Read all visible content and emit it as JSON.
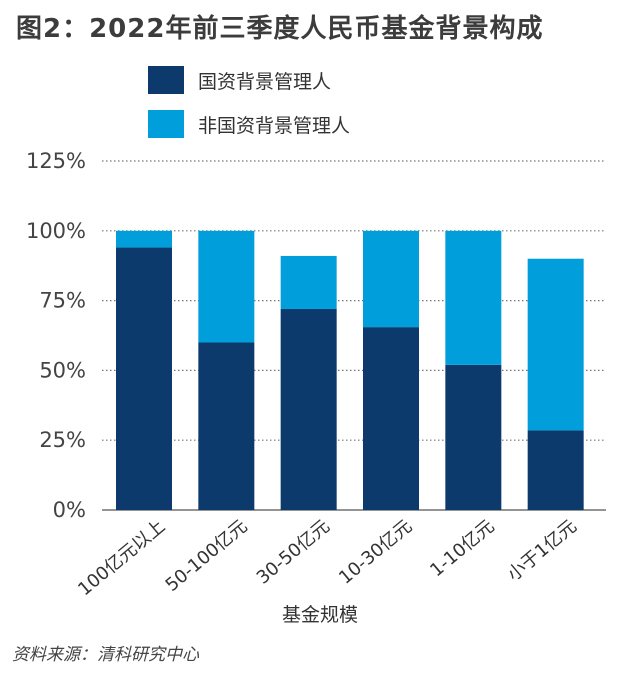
{
  "title": "图2：2022年前三季度人民币基金背景构成",
  "legend": [
    {
      "label": "国资背景管理人",
      "color": "#0c3a6c"
    },
    {
      "label": "非国资背景管理人",
      "color": "#009fdb"
    }
  ],
  "chart_data": {
    "type": "bar",
    "stacked": true,
    "categories": [
      "100亿元以上",
      "50-100亿元",
      "30-50亿元",
      "10-30亿元",
      "1-10亿元",
      "小于1亿元"
    ],
    "series": [
      {
        "name": "国资背景管理人",
        "color": "#0c3a6c",
        "values": [
          94,
          60,
          72,
          65.5,
          52,
          28.5
        ]
      },
      {
        "name": "非国资背景管理人",
        "color": "#009fdb",
        "values": [
          6,
          40,
          19,
          34.5,
          48,
          61.5
        ]
      }
    ],
    "yticks": [
      "0%",
      "25%",
      "50%",
      "75%",
      "100%",
      "125%"
    ],
    "ytick_values": [
      0,
      25,
      50,
      75,
      100,
      125
    ],
    "ylim": [
      0,
      125
    ],
    "xlabel": "基金规模",
    "ylabel": "",
    "grid": "dotted-horizontal",
    "legend_position": "top"
  },
  "source": "资料来源：清科研究中心"
}
